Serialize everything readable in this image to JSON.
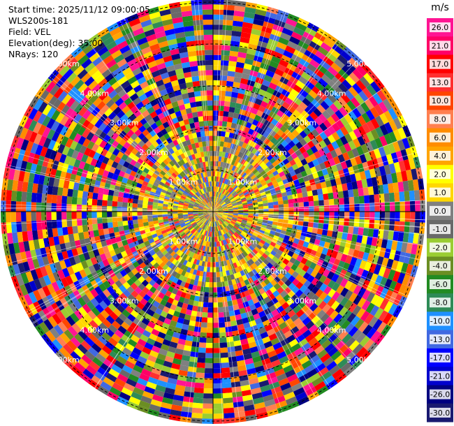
{
  "header": {
    "start_time": "Start time: 2025/11/12 09:00:05",
    "instrument": "WLS200s-181",
    "field": "Field: VEL",
    "elevation": "Elevation(deg): 35.00",
    "nrays": "NRays: 120"
  },
  "chart_data": {
    "type": "heatmap",
    "projection": "polar-ppi",
    "n_rays": 120,
    "range_rings": [
      {
        "label": "1.00km"
      },
      {
        "label": "2.00km"
      },
      {
        "label": "3.00km"
      },
      {
        "label": "4.00km"
      },
      {
        "label": "5.00km"
      }
    ],
    "colorbar": {
      "unit": "m/s",
      "ticks": [
        "26.0",
        "21.0",
        "17.0",
        "13.0",
        "10.0",
        "8.0",
        "6.0",
        "4.0",
        "2.0",
        "1.0",
        "0.0",
        "-1.0",
        "-2.0",
        "-4.0",
        "-6.0",
        "-8.0",
        "-10.0",
        "-13.0",
        "-17.0",
        "-21.0",
        "-26.0",
        "-30.0"
      ],
      "colors": [
        "#ff1493",
        "#ff0066",
        "#ff0000",
        "#ff3030",
        "#ff4500",
        "#ff7f50",
        "#ff8c00",
        "#ffa500",
        "#ffff00",
        "#ffd700",
        "#808080",
        "#696969",
        "#9acd32",
        "#6b8e23",
        "#228b22",
        "#2e8b57",
        "#1e90ff",
        "#4169e1",
        "#0000ff",
        "#0000cd",
        "#000080",
        "#191970"
      ]
    }
  }
}
